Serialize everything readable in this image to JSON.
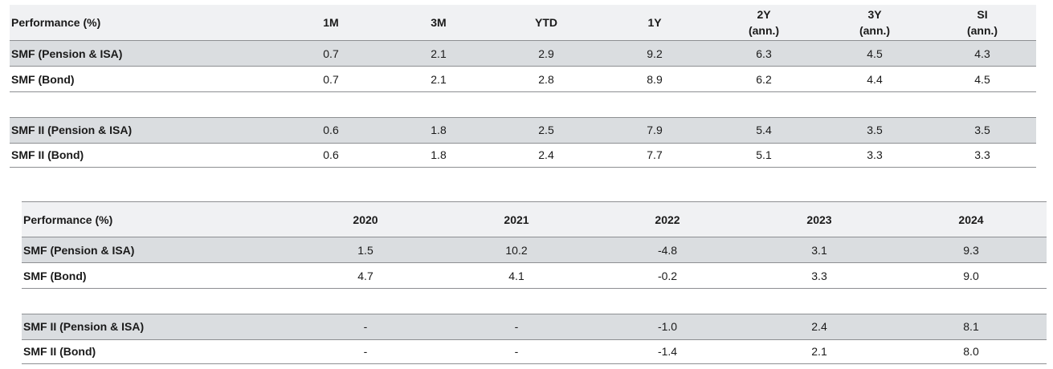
{
  "table1": {
    "headers": [
      "Performance (%)",
      "1M",
      "3M",
      "YTD",
      "1Y",
      "2Y\n(ann.)",
      "3Y\n(ann.)",
      "SI\n(ann.)"
    ],
    "header_lines": {
      "h5": [
        "2Y",
        "(ann.)"
      ],
      "h6": [
        "3Y",
        "(ann.)"
      ],
      "h7": [
        "SI",
        "(ann.)"
      ]
    },
    "rows": [
      [
        "SMF (Pension & ISA)",
        "0.7",
        "2.1",
        "2.9",
        "9.2",
        "6.3",
        "4.5",
        "4.3"
      ],
      [
        "SMF (Bond)",
        "0.7",
        "2.1",
        "2.8",
        "8.9",
        "6.2",
        "4.4",
        "4.5"
      ],
      [
        "SMF II (Pension & ISA)",
        "0.6",
        "1.8",
        "2.5",
        "7.9",
        "5.4",
        "3.5",
        "3.5"
      ],
      [
        "SMF II (Bond)",
        "0.6",
        "1.8",
        "2.4",
        "7.7",
        "5.1",
        "3.3",
        "3.3"
      ]
    ]
  },
  "table2": {
    "headers": [
      "Performance (%)",
      "2020",
      "2021",
      "2022",
      "2023",
      "2024"
    ],
    "rows": [
      [
        "SMF (Pension & ISA)",
        "1.5",
        "10.2",
        "-4.8",
        "3.1",
        "9.3"
      ],
      [
        "SMF (Bond)",
        "4.7",
        "4.1",
        "-0.2",
        "3.3",
        "9.0"
      ],
      [
        "SMF II (Pension & ISA)",
        "-",
        "-",
        "-1.0",
        "2.4",
        "8.1"
      ],
      [
        "SMF II (Bond)",
        "-",
        "-",
        "-1.4",
        "2.1",
        "8.0"
      ]
    ]
  },
  "colors": {
    "header_bg": "#f0f1f3",
    "shaded_row_bg": "#dadde0",
    "rule": "#8d8f92"
  }
}
